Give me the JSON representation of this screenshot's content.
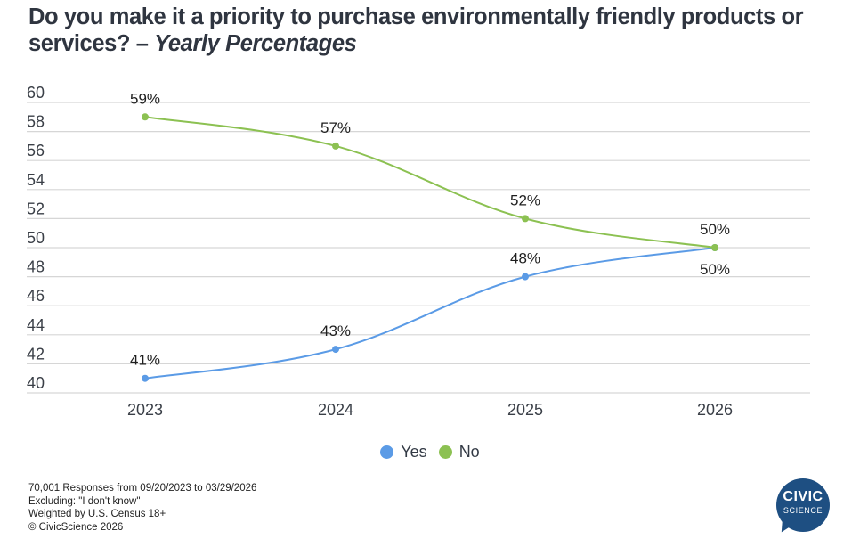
{
  "title": {
    "main": "Do you make it a priority to purchase environmentally friendly products or services?",
    "separator": " – ",
    "subtitle": "Yearly Percentages"
  },
  "chart_data": {
    "type": "line",
    "title": "Do you make it a priority to purchase environmentally friendly products or services? – Yearly Percentages",
    "xlabel": "",
    "ylabel": "",
    "categories": [
      "2023",
      "2024",
      "2025",
      "2026"
    ],
    "ylim": [
      40,
      60
    ],
    "yticks": [
      40,
      42,
      44,
      46,
      48,
      50,
      52,
      54,
      56,
      58,
      60
    ],
    "grid": true,
    "smooth": true,
    "legend_position": "bottom-center",
    "series": [
      {
        "name": "Yes",
        "color": "#5b9be6",
        "values": [
          41,
          43,
          48,
          50
        ],
        "labels": [
          "41%",
          "43%",
          "48%",
          "50%"
        ]
      },
      {
        "name": "No",
        "color": "#8cc152",
        "values": [
          59,
          57,
          52,
          50
        ],
        "labels": [
          "59%",
          "57%",
          "52%",
          "50%"
        ]
      }
    ]
  },
  "legend": [
    {
      "label": "Yes",
      "color": "#5b9be6"
    },
    {
      "label": "No",
      "color": "#8cc152"
    }
  ],
  "footer": [
    "70,001 Responses from 09/20/2023 to 03/29/2026",
    "Excluding: \"I don't know\"",
    "Weighted by U.S. Census 18+",
    "© CivicScience 2026"
  ],
  "logo": {
    "line1": "CIVIC",
    "line2": "SCIENCE",
    "color": "#1e4f82"
  }
}
